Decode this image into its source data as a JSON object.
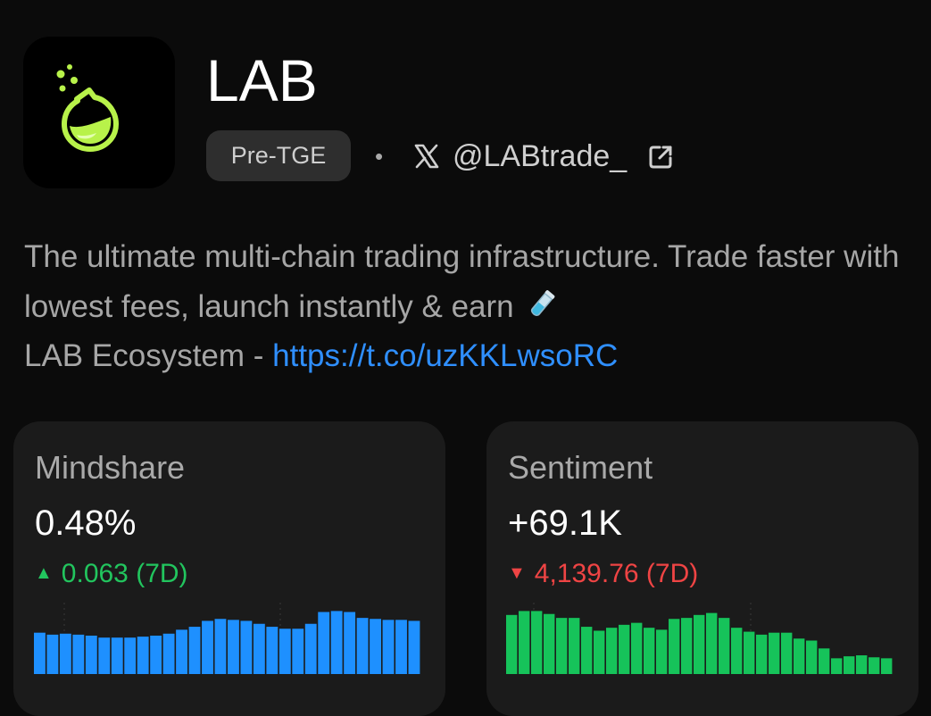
{
  "project": {
    "name": "LAB",
    "badge": "Pre-TGE",
    "separator": "•",
    "handle": "@LABtrade_",
    "description": "The ultimate multi-chain trading infrastructure. Trade faster with lowest fees, launch instantly & earn",
    "description_line3_prefix": "LAB Ecosystem - ",
    "link": "https://t.co/uzKKLwsoRC"
  },
  "icons": {
    "logo": "lab-flask-logo",
    "x": "x-logo-icon",
    "external": "external-link-icon",
    "emoji": "test-tube-emoji"
  },
  "colors": {
    "positive": "#22c55e",
    "negative": "#ef4444",
    "mindshare_bars": "#1e90ff",
    "sentiment_bars": "#16c35a",
    "link": "#2f8fff",
    "logo_green": "#b8f24a"
  },
  "cards": {
    "mindshare": {
      "label": "Mindshare",
      "value": "0.48%",
      "arrow": "▲",
      "change": "0.063 (7D)"
    },
    "sentiment": {
      "label": "Sentiment",
      "value": "+69.1K",
      "arrow": "▼",
      "change": "4,139.76 (7D)"
    }
  },
  "chart_data": [
    {
      "type": "bar",
      "series_name": "Mindshare",
      "values": [
        42,
        40,
        41,
        40,
        39,
        37,
        37,
        37,
        38,
        39,
        41,
        45,
        48,
        54,
        56,
        55,
        54,
        51,
        48,
        46,
        46,
        51,
        63,
        64,
        63,
        57,
        56,
        55,
        55,
        54
      ],
      "ylim": [
        0,
        68
      ]
    },
    {
      "type": "bar",
      "series_name": "Sentiment",
      "values": [
        60,
        64,
        64,
        61,
        57,
        57,
        48,
        44,
        47,
        50,
        52,
        47,
        45,
        56,
        57,
        60,
        62,
        57,
        47,
        43,
        40,
        42,
        42,
        36,
        34,
        26,
        16,
        18,
        19,
        17,
        16
      ],
      "ylim": [
        0,
        68
      ]
    }
  ]
}
